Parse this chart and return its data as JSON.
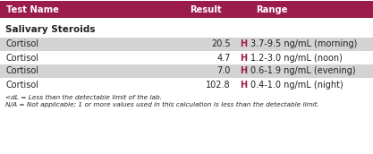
{
  "header_bg": "#9b1b4b",
  "header_text_color": "#ffffff",
  "header_cols": [
    "Test Name",
    "Result",
    "Range"
  ],
  "section_label": "Salivary Steroids",
  "rows": [
    {
      "name": "Cortisol",
      "result": "20.5",
      "flag": "H",
      "range": "3.7-9.5 ng/mL (morning)",
      "shaded": true
    },
    {
      "name": "Cortisol",
      "result": "4.7",
      "flag": "H",
      "range": "1.2-3.0 ng/mL (noon)",
      "shaded": false
    },
    {
      "name": "Cortisol",
      "result": "7.0",
      "flag": "H",
      "range": "0.6-1.9 ng/mL (evening)",
      "shaded": true
    },
    {
      "name": "Cortisol",
      "result": "102.8",
      "flag": "H",
      "range": "0.4-1.0 ng/mL (night)",
      "shaded": false
    }
  ],
  "row_shading": "#d3d3d3",
  "row_bg_white": "#ffffff",
  "footnote1": "<dL = Less than the detectable limit of the lab.",
  "footnote2": "N/A = Not applicable; 1 or more values used in this calculation is less than the detectable limit.",
  "flag_color": "#9b1b4b",
  "text_color": "#222222",
  "fig_width": 4.17,
  "fig_height": 1.72,
  "dpi": 100
}
